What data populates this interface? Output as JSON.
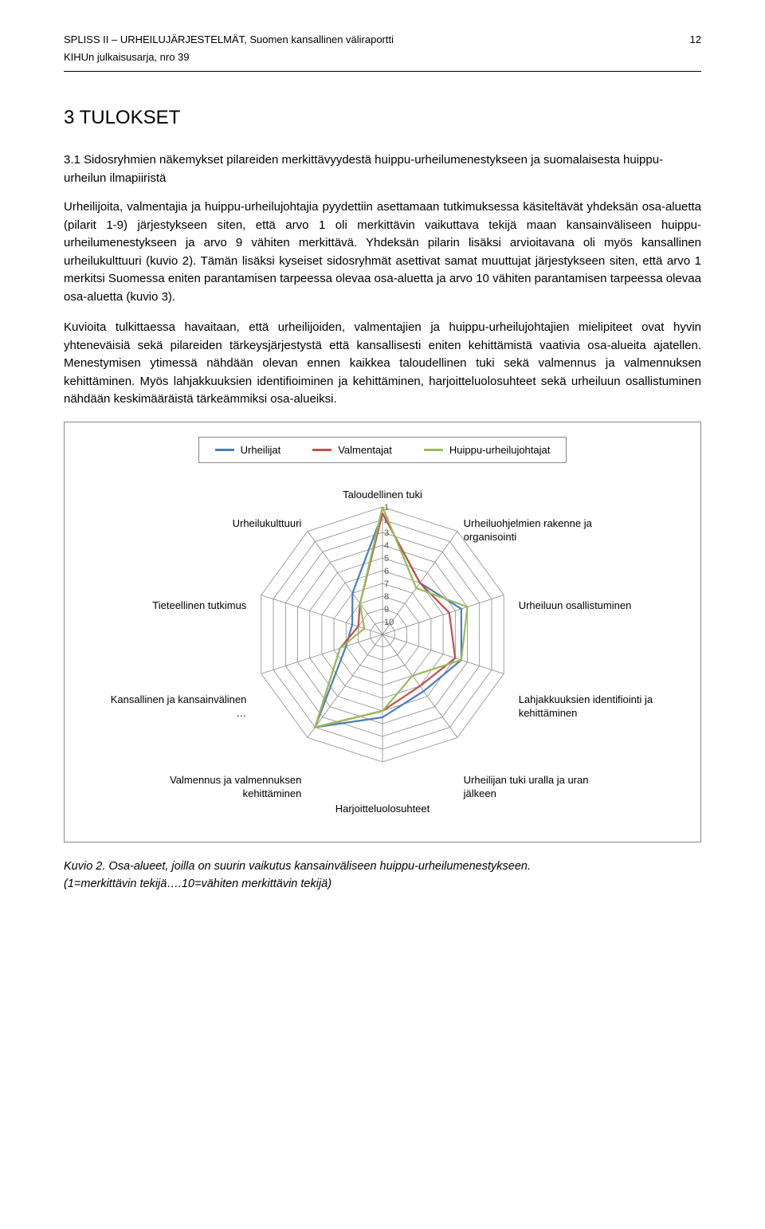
{
  "header": {
    "title_left": "SPLISS II – URHEILUJÄRJESTELMÄT, Suomen kansallinen väliraportti",
    "page_number": "12",
    "subtitle": "KIHUn julkaisusarja, nro 39"
  },
  "section": {
    "number_title": "3 TULOKSET",
    "subsection_title": "3.1 Sidosryhmien näkemykset pilareiden merkittävyydestä huippu-urheilumenestykseen ja suomalaisesta huippu-urheilun ilmapiiristä"
  },
  "paragraphs": {
    "p1": "Urheilijoita, valmentajia ja huippu-urheilujohtajia pyydettiin asettamaan tutkimuksessa käsiteltävät yhdeksän osa-aluetta (pilarit 1-9) järjestykseen siten, että arvo 1 oli merkittävin vaikuttava tekijä maan kansainväliseen huippu-urheilumenestykseen ja arvo 9 vähiten merkittävä. Yhdeksän pilarin lisäksi arvioitavana oli myös kansallinen urheilukulttuuri (kuvio 2). Tämän lisäksi kyseiset sidosryhmät asettivat samat muuttujat järjestykseen siten, että arvo 1 merkitsi Suomessa eniten parantamisen tarpeessa olevaa osa-aluetta ja arvo 10 vähiten parantamisen tarpeessa olevaa osa-aluetta (kuvio 3).",
    "p2": "Kuvioita tulkittaessa havaitaan, että urheilijoiden, valmentajien ja huippu-urheilujohtajien mielipiteet ovat hyvin yhteneväisiä sekä pilareiden tärkeysjärjestystä että kansallisesti eniten kehittämistä vaativia osa-alueita ajatellen. Menestymisen ytimessä nähdään olevan ennen kaikkea taloudellinen tuki sekä valmennus ja valmennuksen kehittäminen. Myös lahjakkuuksien identifioiminen ja kehittäminen, harjoitteluolosuhteet sekä urheiluun osallistuminen nähdään keskimääräistä tärkeämmiksi osa-alueiksi."
  },
  "chart": {
    "type": "radar",
    "legend": [
      {
        "label": "Urheilijat",
        "color": "#4a7ebb"
      },
      {
        "label": "Valmentajat",
        "color": "#c0504d"
      },
      {
        "label": "Huippu-urheilujohtajat",
        "color": "#9bbb59"
      }
    ],
    "axes": [
      "Taloudellinen tuki",
      "Urheiluohjelmien rakenne ja organisointi",
      "Urheiluun osallistuminen",
      "Lahjakkuuksien identifiointi ja kehittäminen",
      "Urheilijan tuki uralla ja uran jälkeen",
      "Harjoitteluolosuhteet",
      "Valmennus ja valmennuksen kehittäminen",
      "Kansallinen ja kansainvälinen …",
      "Tieteellinen tutkimus",
      "Urheilukulttuuri"
    ],
    "scale": {
      "min": 1,
      "max": 10,
      "rings": [
        1,
        2,
        3,
        4,
        5,
        6,
        7,
        8,
        9,
        10
      ]
    },
    "series": {
      "urheilijat": [
        1.5,
        6.0,
        4.5,
        4.5,
        5.5,
        4.5,
        2.0,
        8.0,
        8.5,
        7.0
      ],
      "valmentajat": [
        1.5,
        6.0,
        5.5,
        5.0,
        6.0,
        5.0,
        2.0,
        7.5,
        9.0,
        8.0
      ],
      "johtajat": [
        1.0,
        6.5,
        4.0,
        4.5,
        7.0,
        5.0,
        2.0,
        7.5,
        9.5,
        8.0
      ]
    },
    "grid_color": "#8a8a8a",
    "tick_color": "#555555",
    "line_width": 2.2,
    "background": "#ffffff",
    "label_fontsize": 13,
    "tick_fontsize": 11
  },
  "caption": {
    "line1": "Kuvio 2. Osa-alueet, joilla on suurin vaikutus kansainväliseen huippu-urheilumenestykseen.",
    "line2": "(1=merkittävin tekijä….10=vähiten merkittävin tekijä)"
  }
}
